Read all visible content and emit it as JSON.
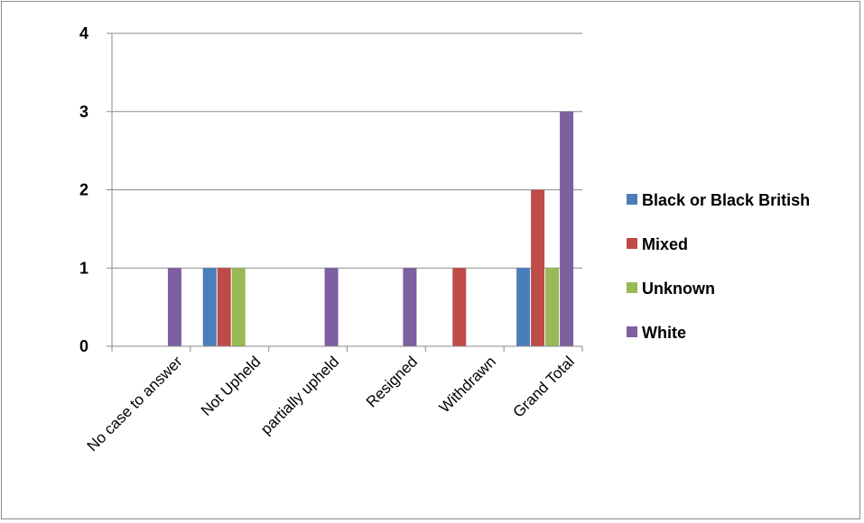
{
  "chart_data": {
    "type": "bar",
    "title": "",
    "xlabel": "",
    "ylabel": "",
    "ylim": [
      0,
      4
    ],
    "yticks": [
      0,
      1,
      2,
      3,
      4
    ],
    "grid": true,
    "legend_position": "right",
    "categories": [
      "No case to answer",
      "Not Upheld",
      "partially upheld",
      "Resigned",
      "Withdrawn",
      "Grand Total"
    ],
    "series": [
      {
        "name": "Black or Black British",
        "color": "#4a7ebb",
        "values": [
          0,
          1,
          0,
          0,
          0,
          1
        ]
      },
      {
        "name": "Mixed",
        "color": "#be4b48",
        "values": [
          0,
          1,
          0,
          0,
          1,
          2
        ]
      },
      {
        "name": "Unknown",
        "color": "#98b954",
        "values": [
          0,
          1,
          0,
          0,
          0,
          1
        ]
      },
      {
        "name": "White",
        "color": "#7d60a0",
        "values": [
          1,
          0,
          1,
          1,
          0,
          3
        ]
      }
    ]
  }
}
